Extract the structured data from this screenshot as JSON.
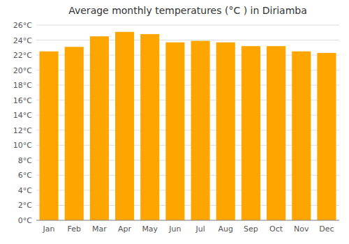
{
  "chart_data": {
    "type": "bar",
    "title": "Average monthly temperatures (°C ) in Diriamba",
    "categories": [
      "Jan",
      "Feb",
      "Mar",
      "Apr",
      "May",
      "Jun",
      "Jul",
      "Aug",
      "Sep",
      "Oct",
      "Nov",
      "Dec"
    ],
    "values": [
      22.5,
      23.1,
      24.5,
      25.1,
      24.8,
      23.7,
      23.9,
      23.7,
      23.2,
      23.2,
      22.5,
      22.3
    ],
    "color": "#FFA500",
    "ylim": [
      0,
      26
    ],
    "yticks": [
      {
        "value": 0,
        "label": "0°C"
      },
      {
        "value": 2,
        "label": "2°C"
      },
      {
        "value": 4,
        "label": "4°C"
      },
      {
        "value": 6,
        "label": "6°C"
      },
      {
        "value": 8,
        "label": "8°C"
      },
      {
        "value": 10,
        "label": "10°C"
      },
      {
        "value": 12,
        "label": "12°C"
      },
      {
        "value": 14,
        "label": "14°C"
      },
      {
        "value": 16,
        "label": "16°C"
      },
      {
        "value": 18,
        "label": "18°C"
      },
      {
        "value": 20,
        "label": "20°C"
      },
      {
        "value": 22,
        "label": "22°C"
      },
      {
        "value": 24,
        "label": "24°C"
      },
      {
        "value": 26,
        "label": "26°C"
      }
    ],
    "grid": true
  }
}
